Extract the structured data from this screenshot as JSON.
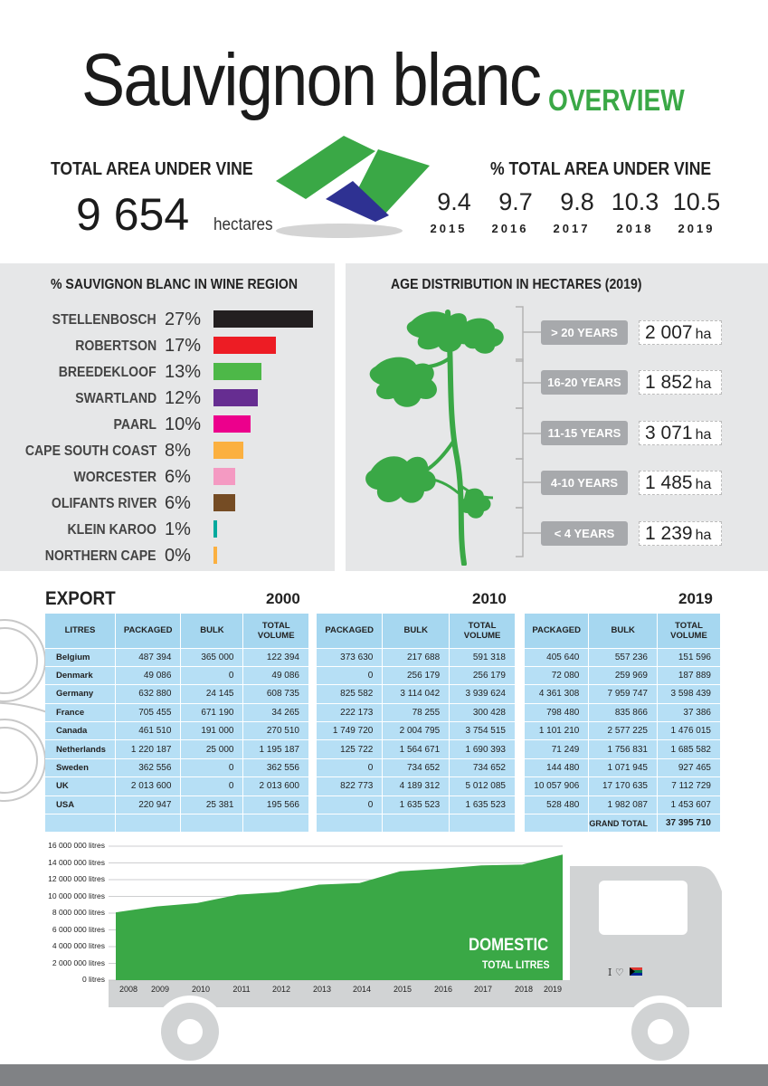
{
  "title": {
    "main": "Sauvignon blanc",
    "sub": "OVERVIEW"
  },
  "area": {
    "label": "TOTAL AREA UNDER VINE",
    "value": "9 654",
    "unit": "hectares"
  },
  "pct_area": {
    "label": "% TOTAL AREA UNDER VINE",
    "years": [
      {
        "value": "9.4",
        "year": "2015"
      },
      {
        "value": "9.7",
        "year": "2016"
      },
      {
        "value": "9.8",
        "year": "2017"
      },
      {
        "value": "10.3",
        "year": "2018"
      },
      {
        "value": "10.5",
        "year": "2019"
      }
    ]
  },
  "regions": {
    "title": "%  SAUVIGNON BLANC IN WINE REGION",
    "items": [
      {
        "name": "STELLENBOSCH",
        "pct": "27%",
        "value": 27,
        "color": "#231f20"
      },
      {
        "name": "ROBERTSON",
        "pct": "17%",
        "value": 17,
        "color": "#ed1c24"
      },
      {
        "name": "BREEDEKLOOF",
        "pct": "13%",
        "value": 13,
        "color": "#4db848"
      },
      {
        "name": "SWARTLAND",
        "pct": "12%",
        "value": 12,
        "color": "#662d91"
      },
      {
        "name": "PAARL",
        "pct": "10%",
        "value": 10,
        "color": "#ec008c"
      },
      {
        "name": "CAPE SOUTH COAST",
        "pct": "8%",
        "value": 8,
        "color": "#fbb040"
      },
      {
        "name": "WORCESTER",
        "pct": "6%",
        "value": 6,
        "color": "#f49ac2"
      },
      {
        "name": "OLIFANTS RIVER",
        "pct": "6%",
        "value": 6,
        "color": "#754c24"
      },
      {
        "name": "KLEIN KAROO",
        "pct": "1%",
        "value": 1,
        "color": "#00a99d"
      },
      {
        "name": "NORTHERN CAPE",
        "pct": "0%",
        "value": 0,
        "color": "#fbb040"
      }
    ]
  },
  "age": {
    "title": "AGE DISTRIBUTION IN HECTARES (2019)",
    "unit": "ha",
    "items": [
      {
        "label": "> 20 YEARS",
        "value": "2 007"
      },
      {
        "label": "16-20 YEARS",
        "value": "1 852"
      },
      {
        "label": "11-15 YEARS",
        "value": "3 071"
      },
      {
        "label": "4-10 YEARS",
        "value": "1 485"
      },
      {
        "label": "< 4 YEARS",
        "value": "1 239"
      }
    ]
  },
  "export": {
    "title": "EXPORT",
    "countries": [
      "Belgium",
      "Denmark",
      "Germany",
      "France",
      "Canada",
      "Netherlands",
      "Sweden",
      "UK",
      "USA"
    ],
    "corner": "LITRES",
    "headers": {
      "packaged": "PACKAGED",
      "bulk": "BULK",
      "total": "TOTAL VOLUME"
    },
    "tables": [
      {
        "year": "2000",
        "rows": [
          [
            "487 394",
            "365 000",
            "122 394"
          ],
          [
            "49 086",
            "0",
            "49 086"
          ],
          [
            "632 880",
            "24 145",
            "608 735"
          ],
          [
            "705 455",
            "671 190",
            "34 265"
          ],
          [
            "461 510",
            "191 000",
            "270 510"
          ],
          [
            "1 220 187",
            "25 000",
            "1 195 187"
          ],
          [
            "362 556",
            "0",
            "362 556"
          ],
          [
            "2 013 600",
            "0",
            "2 013 600"
          ],
          [
            "220 947",
            "25 381",
            "195 566"
          ]
        ]
      },
      {
        "year": "2010",
        "rows": [
          [
            "373 630",
            "217 688",
            "591 318"
          ],
          [
            "0",
            "256 179",
            "256 179"
          ],
          [
            "825 582",
            "3 114 042",
            "3 939 624"
          ],
          [
            "222 173",
            "78 255",
            "300 428"
          ],
          [
            "1 749 720",
            "2 004 795",
            "3 754 515"
          ],
          [
            "125 722",
            "1 564 671",
            "1 690 393"
          ],
          [
            "0",
            "734 652",
            "734 652"
          ],
          [
            "822 773",
            "4 189 312",
            "5 012 085"
          ],
          [
            "0",
            "1 635 523",
            "1 635 523"
          ]
        ]
      },
      {
        "year": "2019",
        "rows": [
          [
            "405 640",
            "557 236",
            "151 596"
          ],
          [
            "72 080",
            "259 969",
            "187 889"
          ],
          [
            "4 361 308",
            "7 959 747",
            "3 598 439"
          ],
          [
            "798 480",
            "835 866",
            "37 386"
          ],
          [
            "1 101 210",
            "2 577 225",
            "1 476 015"
          ],
          [
            "71 249",
            "1 756 831",
            "1 685 582"
          ],
          [
            "144 480",
            "1 071 945",
            "927 465"
          ],
          [
            "10 057 906",
            "17 170 635",
            "7 112 729"
          ],
          [
            "528 480",
            "1 982 087",
            "1 453 607"
          ]
        ],
        "grand_total_label": "GRAND TOTAL",
        "grand_total": "37 395 710"
      }
    ]
  },
  "chart_data": {
    "type": "area",
    "title": "DOMESTIC",
    "subtitle": "TOTAL LITRES",
    "x": [
      2008,
      2009,
      2010,
      2011,
      2012,
      2013,
      2014,
      2015,
      2016,
      2017,
      2018,
      2019
    ],
    "values": [
      8100000,
      8800000,
      9200000,
      10200000,
      10500000,
      11400000,
      11600000,
      13000000,
      13300000,
      13700000,
      13800000,
      15000000
    ],
    "ylim": [
      0,
      16000000
    ],
    "yticks": [
      "0 litres",
      "2 000 000 litres",
      "4 000 000 litres",
      "6 000 000 litres",
      "8 000 000 litres",
      "10 000 000 litres",
      "12 000 000 litres",
      "14 000 000 litres",
      "16 000 000 litres"
    ],
    "xticks": [
      "2008",
      "2009",
      "2010",
      "2011",
      "2012",
      "2013",
      "2014",
      "2015",
      "2016",
      "2017",
      "2018",
      "2019"
    ],
    "color": "#3aa846",
    "grid": true
  },
  "truck_sticker": "I ♡"
}
